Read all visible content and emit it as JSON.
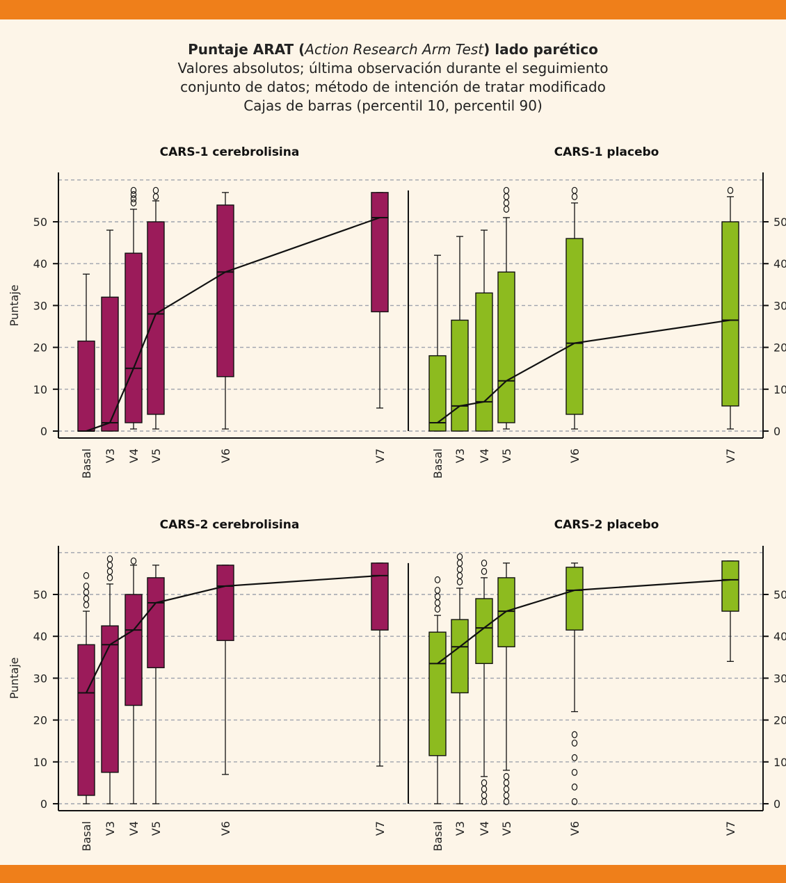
{
  "header": {
    "title_prefix": "Puntaje ARAT (",
    "title_italic": "Action Research Arm Test",
    "title_suffix": ") lado parético",
    "subtitle_lines": [
      "Valores absolutos; última observación durante el seguimiento",
      "conjunto de datos; método de intención de tratar modificado",
      "Cajas de barras (percentil 10, percentil 90)"
    ]
  },
  "colors": {
    "cerebrolisina": "#9b1b5a",
    "placebo": "#8dbb1f",
    "accent_bar": "#ef7f1a",
    "background": "#fdf5e8"
  },
  "chart_data": [
    {
      "type": "box",
      "title": "CARS-1 cerebrolisina",
      "ylabel": "Puntaje",
      "ylim": [
        0,
        60
      ],
      "yticks": [
        0,
        10,
        20,
        30,
        40,
        50
      ],
      "grid": "horizontal-dashed",
      "categories": [
        "Basal",
        "V3",
        "V4",
        "V5",
        "V6",
        "V7"
      ],
      "boxes": [
        {
          "x": "Basal",
          "p10": 0,
          "q1": 0,
          "median": 0,
          "q3": 21.5,
          "p90": 37.5,
          "outliers": []
        },
        {
          "x": "V3",
          "p10": 0,
          "q1": 0,
          "median": 2,
          "q3": 32,
          "p90": 48,
          "outliers": []
        },
        {
          "x": "V4",
          "p10": 0.5,
          "q1": 2,
          "median": 15,
          "q3": 42.5,
          "p90": 53,
          "outliers": [
            54.5,
            55.5,
            56.5,
            57.5
          ]
        },
        {
          "x": "V5",
          "p10": 0.5,
          "q1": 4,
          "median": 28,
          "q3": 50,
          "p90": 55,
          "outliers": [
            56,
            57.5
          ]
        },
        {
          "x": "V6",
          "p10": 0.5,
          "q1": 13,
          "median": 38,
          "q3": 54,
          "p90": 57,
          "outliers": []
        },
        {
          "x": "V7",
          "p10": 5.5,
          "q1": 28.5,
          "median": 51,
          "q3": 57,
          "p90": 57,
          "outliers": []
        }
      ],
      "mean_line": [
        0,
        2,
        15,
        28,
        38,
        51
      ]
    },
    {
      "type": "box",
      "title": "CARS-1 placebo",
      "ylim": [
        0,
        60
      ],
      "yticks": [
        0,
        10,
        20,
        30,
        40,
        50
      ],
      "grid": "horizontal-dashed",
      "categories": [
        "Basal",
        "V3",
        "V4",
        "V5",
        "V6",
        "V7"
      ],
      "boxes": [
        {
          "x": "Basal",
          "p10": 0,
          "q1": 0,
          "median": 2,
          "q3": 18,
          "p90": 42,
          "outliers": []
        },
        {
          "x": "V3",
          "p10": 0,
          "q1": 0,
          "median": 6,
          "q3": 26.5,
          "p90": 46.5,
          "outliers": []
        },
        {
          "x": "V4",
          "p10": 0,
          "q1": 0,
          "median": 7,
          "q3": 33,
          "p90": 48,
          "outliers": []
        },
        {
          "x": "V5",
          "p10": 0.5,
          "q1": 2,
          "median": 12,
          "q3": 38,
          "p90": 51,
          "outliers": [
            53,
            54.5,
            56,
            57.5
          ]
        },
        {
          "x": "V6",
          "p10": 0.5,
          "q1": 4,
          "median": 21,
          "q3": 46,
          "p90": 54.5,
          "outliers": [
            56,
            57.5
          ]
        },
        {
          "x": "V7",
          "p10": 0.5,
          "q1": 6,
          "median": 26.5,
          "q3": 50,
          "p90": 56,
          "outliers": [
            57.5
          ]
        }
      ],
      "mean_line": [
        2,
        6,
        7,
        12,
        21,
        26.5
      ]
    },
    {
      "type": "box",
      "title": "CARS-2 cerebrolisina",
      "ylabel": "Puntaje",
      "ylim": [
        0,
        60
      ],
      "yticks": [
        0,
        10,
        20,
        30,
        40,
        50
      ],
      "grid": "horizontal-dashed",
      "categories": [
        "Basal",
        "V3",
        "V4",
        "V5",
        "V6",
        "V7"
      ],
      "boxes": [
        {
          "x": "Basal",
          "p10": 0,
          "q1": 2,
          "median": 26.5,
          "q3": 38,
          "p90": 46,
          "outliers": [
            47.5,
            49,
            50.5,
            52,
            54.5
          ]
        },
        {
          "x": "V3",
          "p10": 0,
          "q1": 7.5,
          "median": 38,
          "q3": 42.5,
          "p90": 52.5,
          "outliers": [
            54,
            55.5,
            57,
            58.5
          ]
        },
        {
          "x": "V4",
          "p10": 0,
          "q1": 23.5,
          "median": 41.5,
          "q3": 50,
          "p90": 57,
          "outliers": [
            58
          ]
        },
        {
          "x": "V5",
          "p10": 0,
          "q1": 32.5,
          "median": 48,
          "q3": 54,
          "p90": 57,
          "outliers": []
        },
        {
          "x": "V6",
          "p10": 7,
          "q1": 39,
          "median": 52,
          "q3": 57,
          "p90": 57,
          "outliers": []
        },
        {
          "x": "V7",
          "p10": 9,
          "q1": 41.5,
          "median": 54.5,
          "q3": 57.5,
          "p90": 57.5,
          "outliers": []
        }
      ],
      "mean_line": [
        26.5,
        38,
        41.5,
        48,
        52,
        54.5
      ]
    },
    {
      "type": "box",
      "title": "CARS-2 placebo",
      "ylim": [
        0,
        60
      ],
      "yticks": [
        0,
        10,
        20,
        30,
        40,
        50
      ],
      "grid": "horizontal-dashed",
      "categories": [
        "Basal",
        "V3",
        "V4",
        "V5",
        "V6",
        "V7"
      ],
      "boxes": [
        {
          "x": "Basal",
          "p10": 0,
          "q1": 11.5,
          "median": 33.5,
          "q3": 41,
          "p90": 45,
          "outliers": [
            46.5,
            48,
            49.5,
            51,
            53.5
          ]
        },
        {
          "x": "V3",
          "p10": 0,
          "q1": 26.5,
          "median": 37.5,
          "q3": 44,
          "p90": 51.5,
          "outliers": [
            53,
            54.5,
            56,
            57.5,
            59
          ]
        },
        {
          "x": "V4",
          "p10": 6.5,
          "q1": 33.5,
          "median": 42,
          "q3": 49,
          "p90": 54,
          "outliers": [
            0.5,
            2,
            3.5,
            5,
            55.5,
            57.5
          ]
        },
        {
          "x": "V5",
          "p10": 8,
          "q1": 37.5,
          "median": 46,
          "q3": 54,
          "p90": 57.5,
          "outliers": [
            0.5,
            2,
            3.5,
            5,
            6.5
          ]
        },
        {
          "x": "V6",
          "p10": 22,
          "q1": 41.5,
          "median": 51,
          "q3": 56.5,
          "p90": 57.5,
          "outliers": [
            0.5,
            4,
            7.5,
            11,
            14.5,
            16.5
          ]
        },
        {
          "x": "V7",
          "p10": 34,
          "q1": 46,
          "median": 53.5,
          "q3": 58,
          "p90": 58,
          "outliers": []
        }
      ],
      "mean_line": [
        33.5,
        37.5,
        42,
        46,
        51,
        53.5
      ]
    }
  ]
}
